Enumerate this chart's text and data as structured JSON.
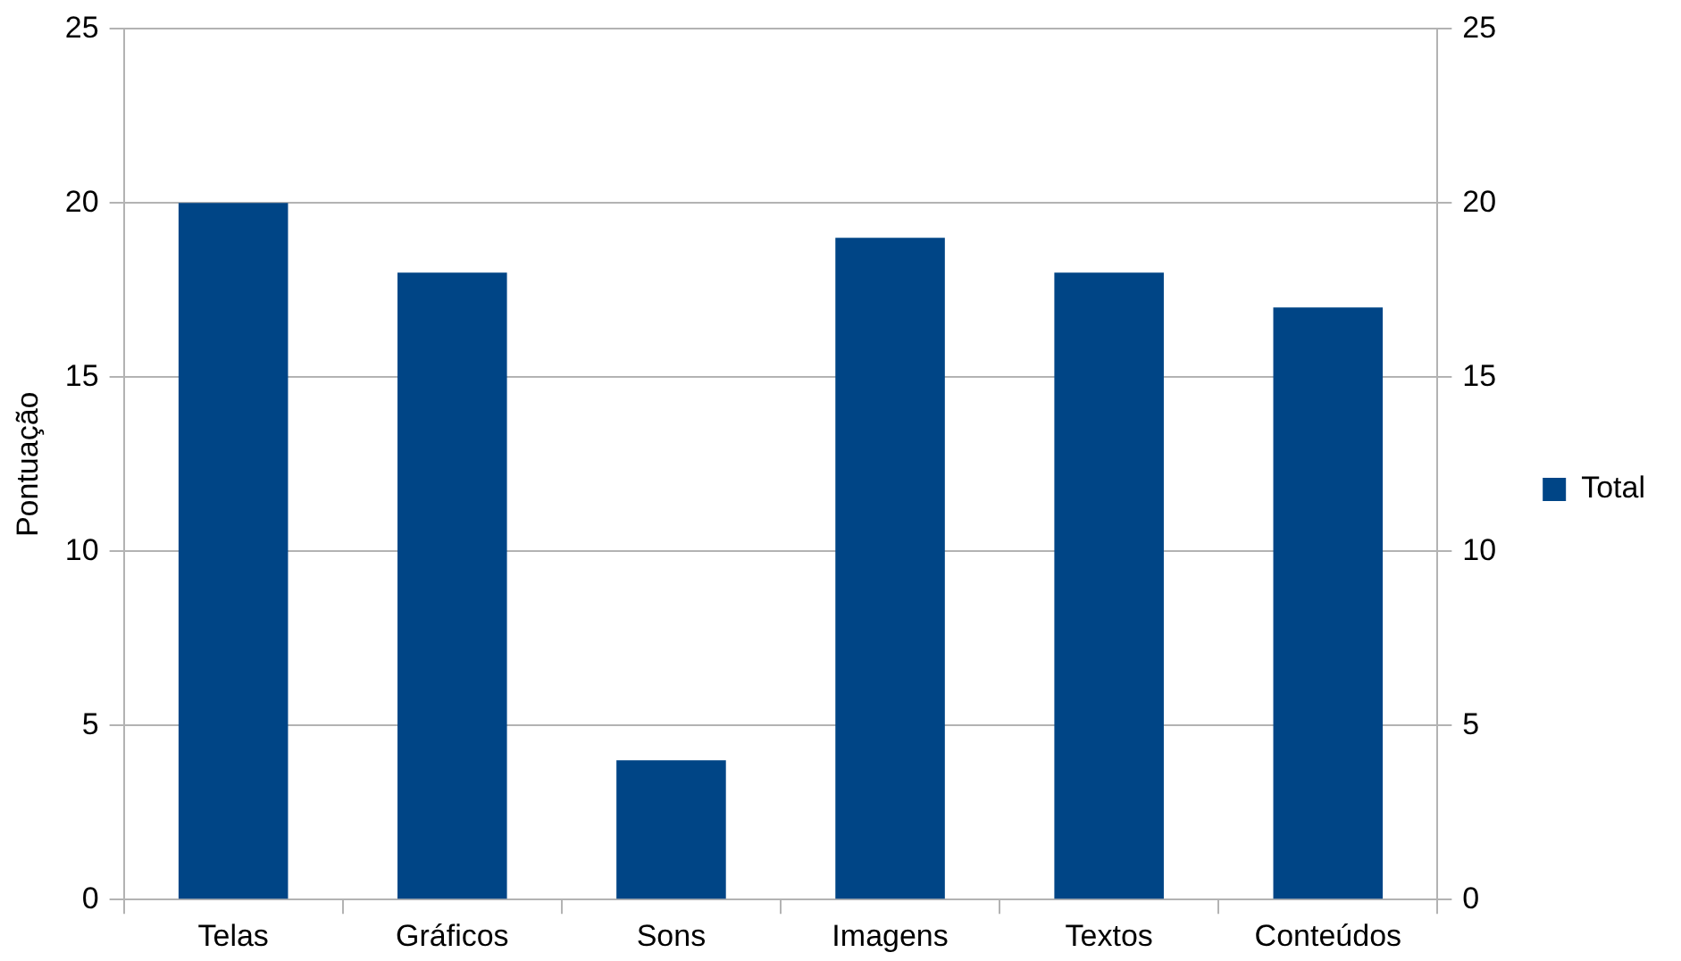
{
  "chart_data": {
    "type": "bar",
    "ylabel": "Pontuação",
    "categories": [
      "Telas",
      "Gráficos",
      "Sons",
      "Imagens",
      "Textos",
      "Conteúdos"
    ],
    "series": [
      {
        "name": "Total",
        "color": "#004586",
        "values": [
          20,
          18,
          4,
          19,
          18,
          17
        ]
      }
    ],
    "ylim": [
      0,
      25
    ],
    "yticks": [
      0,
      5,
      10,
      15,
      20,
      25
    ],
    "y2lim": [
      0,
      25
    ],
    "y2ticks": [
      0,
      5,
      10,
      15,
      20,
      25
    ],
    "grid": "y",
    "legend": "right"
  }
}
